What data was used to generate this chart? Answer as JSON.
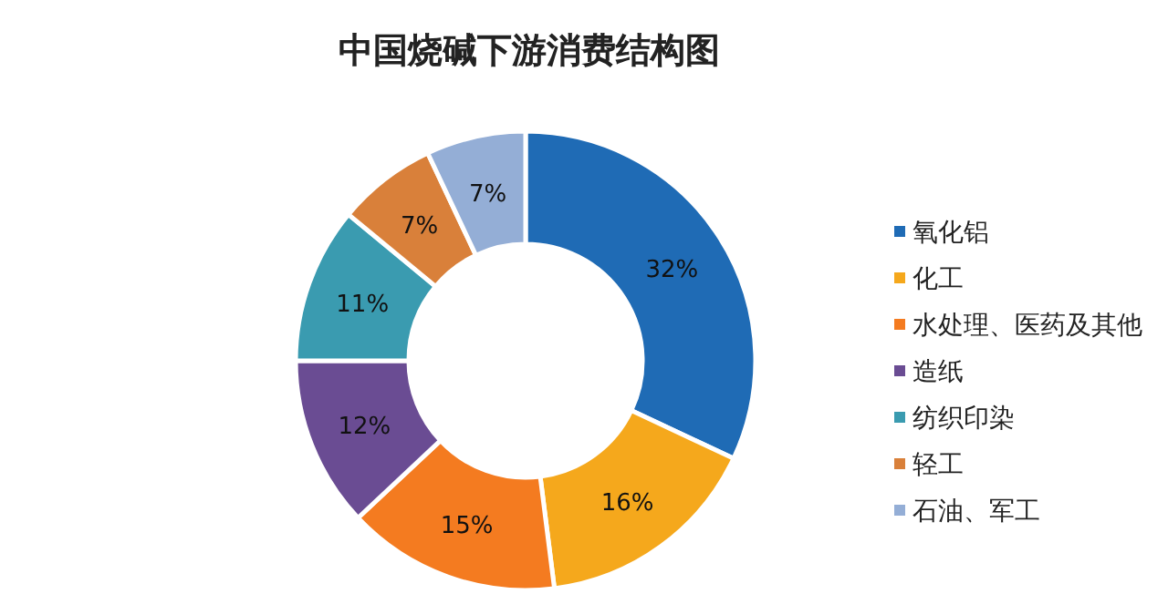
{
  "chart_data": {
    "type": "donut",
    "title": "中国烧碱下游消费结构图",
    "categories": [
      "氧化铝",
      "化工",
      "水处理、医药及其他",
      "造纸",
      "纺织印染",
      "轻工",
      "石油、军工"
    ],
    "values": [
      32,
      16,
      15,
      12,
      11,
      7,
      7
    ],
    "value_labels": [
      "32%",
      "16%",
      "15%",
      "12%",
      "11%",
      "7%",
      "7%"
    ],
    "colors": [
      "#1f6bb5",
      "#f5a81c",
      "#f47b20",
      "#6a4c93",
      "#3a9bb0",
      "#d9803a",
      "#94aed6"
    ],
    "legend": "right"
  }
}
